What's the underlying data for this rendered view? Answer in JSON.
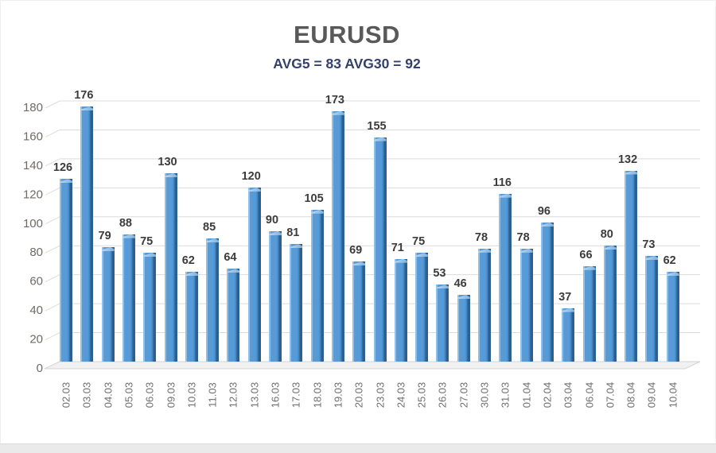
{
  "chart_data": {
    "type": "bar",
    "title": "EURUSD",
    "subtitle": "AVG5 = 83 AVG30 = 92",
    "avg5": 83,
    "avg30": 92,
    "categories": [
      "02.03",
      "03.03",
      "04.03",
      "05.03",
      "06.03",
      "09.03",
      "10.03",
      "11.03",
      "12.03",
      "13.03",
      "16.03",
      "17.03",
      "18.03",
      "19.03",
      "20.03",
      "23.03",
      "24.03",
      "25.03",
      "26.03",
      "27.03",
      "30.03",
      "31.03",
      "01.04",
      "02.04",
      "03.04",
      "06.04",
      "07.04",
      "08.04",
      "09.04",
      "10.04"
    ],
    "values": [
      126,
      176,
      79,
      88,
      75,
      130,
      62,
      85,
      64,
      120,
      90,
      81,
      105,
      173,
      69,
      155,
      71,
      75,
      53,
      46,
      78,
      116,
      78,
      96,
      37,
      66,
      80,
      132,
      73,
      62
    ],
    "xlabel": "",
    "ylabel": "",
    "ylim": [
      0,
      180
    ],
    "ytick_step": 20,
    "grid": true,
    "legend_position": "none",
    "colors": {
      "bar_main": "#5b9bd5",
      "bar_edge_dark": "#2e608f",
      "bar_edge_light": "#8fc0e8",
      "bar_cap": "#a5c9e9",
      "gridline": "#dcdcdc",
      "floor_fill": "#f1f1f1",
      "floor_stroke": "#d4d4d4",
      "title": "#595959",
      "subtitle": "#33416b",
      "value_label": "#3c3c3c",
      "axis_tick_label": "#6f6a66",
      "x_tick_label": "#6f6f6f"
    }
  }
}
